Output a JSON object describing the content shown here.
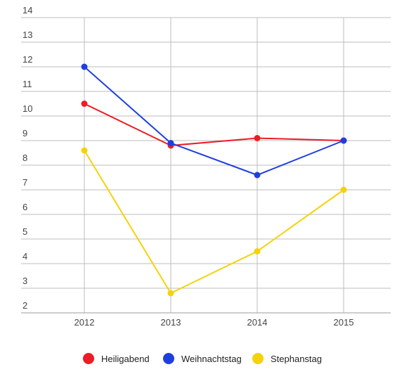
{
  "chart_data": {
    "type": "line",
    "title": "",
    "xlabel": "",
    "ylabel": "",
    "categories": [
      "2012",
      "2013",
      "2014",
      "2015"
    ],
    "y_ticks": [
      "2",
      "3",
      "4",
      "5",
      "6",
      "7",
      "8",
      "9",
      "10",
      "11",
      "12",
      "13",
      "14"
    ],
    "ylim": [
      2,
      14
    ],
    "grid": true,
    "legend_position": "bottom",
    "series": [
      {
        "name": "Heiligabend",
        "color": "#ee1c25",
        "values": [
          10.5,
          8.8,
          9.1,
          9.0
        ]
      },
      {
        "name": "Weihnachtstag",
        "color": "#1f3fdd",
        "values": [
          12.0,
          8.9,
          7.6,
          9.0
        ]
      },
      {
        "name": "Stephanstag",
        "color": "#f5d20a",
        "values": [
          8.6,
          2.8,
          4.5,
          7.0
        ]
      }
    ]
  }
}
